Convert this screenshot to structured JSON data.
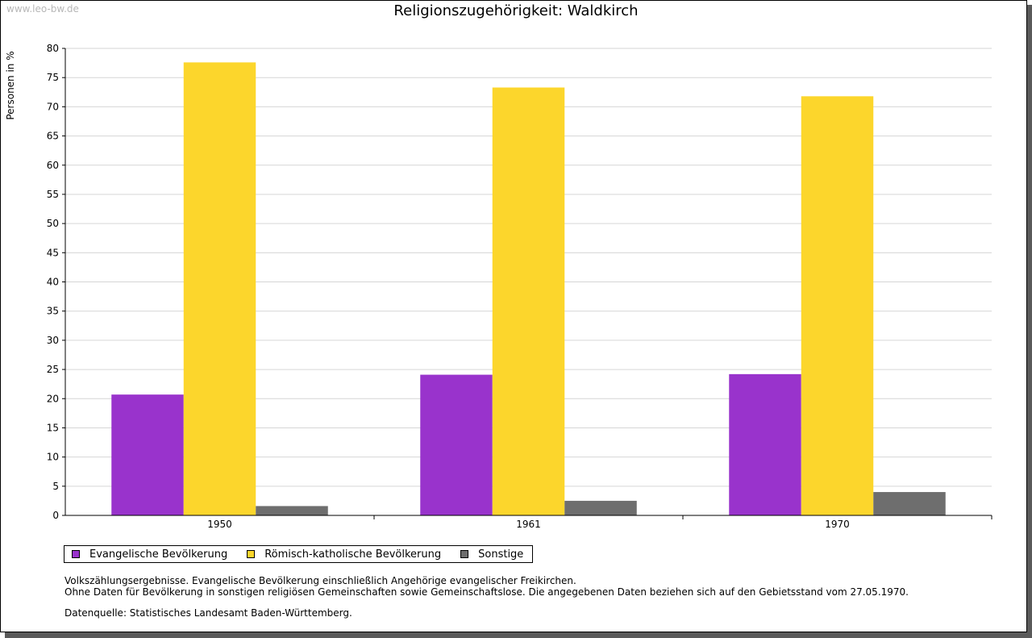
{
  "watermark": "www.leo-bw.de",
  "colors": {
    "evangelisch": "#9933cc",
    "katholisch": "#fcd62c",
    "sonstige": "#6e6e6e",
    "grid": "#d6d6d6"
  },
  "chart_data": {
    "type": "bar",
    "title": "Religionszugehörigkeit: Waldkirch",
    "xlabel": "",
    "ylabel": "Personen in %",
    "ylim": [
      0,
      80
    ],
    "yticks": [
      0,
      5,
      10,
      15,
      20,
      25,
      30,
      35,
      40,
      45,
      50,
      55,
      60,
      65,
      70,
      75,
      80
    ],
    "grid": true,
    "categories": [
      "1950",
      "1961",
      "1970"
    ],
    "series": [
      {
        "name": "Evangelische Bevölkerung",
        "values": [
          20.7,
          24.1,
          24.2
        ]
      },
      {
        "name": "Römisch-katholische Bevölkerung",
        "values": [
          77.6,
          73.3,
          71.8
        ]
      },
      {
        "name": "Sonstige",
        "values": [
          1.6,
          2.5,
          4.0
        ]
      }
    ],
    "legend_position": "bottom-left"
  },
  "notes": {
    "line1": "Volkszählungsergebnisse. Evangelische Bevölkerung einschließlich Angehörige evangelischer Freikirchen.",
    "line2": "Ohne Daten für Bevölkerung in sonstigen religiösen Gemeinschaften sowie Gemeinschaftslose. Die angegebenen Daten beziehen sich auf den Gebietsstand vom 27.05.1970.",
    "source": "Datenquelle: Statistisches Landesamt Baden-Württemberg."
  }
}
